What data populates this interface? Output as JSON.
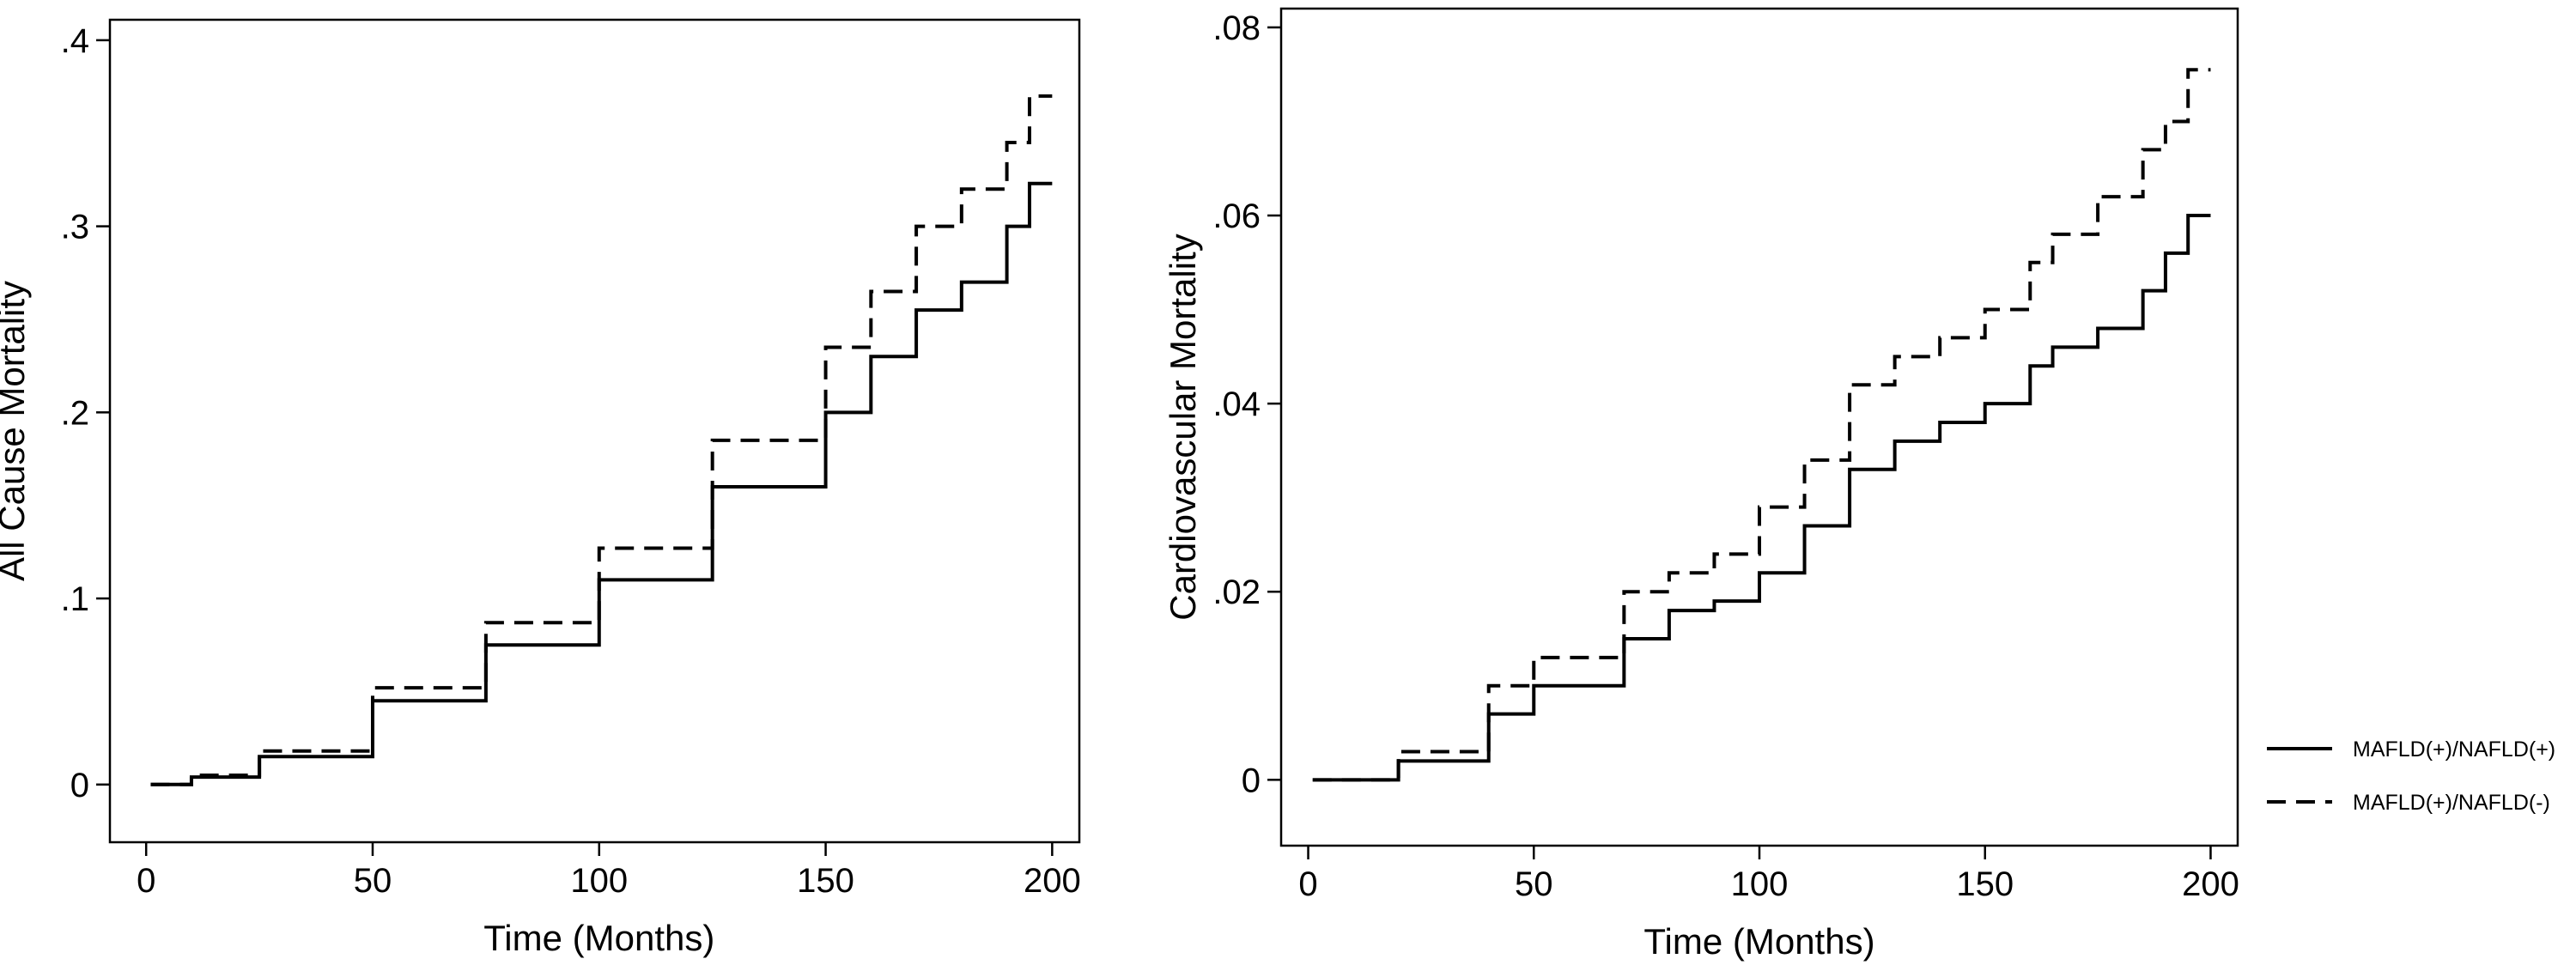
{
  "chart_data": [
    {
      "type": "line",
      "line_style": "step",
      "x_label": "Time (Months)",
      "y_label": "All Cause Mortality",
      "xlim": [
        -8,
        206
      ],
      "xticks": [
        0,
        50,
        100,
        150,
        200
      ],
      "ylim": [
        -0.031,
        0.411
      ],
      "yticks": [
        0,
        {
          "value": 0.1,
          "label": ".1"
        },
        {
          "value": 0.2,
          "label": ".2"
        },
        {
          "value": 0.3,
          "label": ".3"
        },
        {
          "value": 0.4,
          "label": ".4"
        }
      ],
      "series": [
        {
          "color": "#000000",
          "dash": "solid",
          "x": [
            1,
            10,
            25,
            50,
            75,
            100,
            125,
            150,
            160,
            170,
            180,
            190,
            195,
            200
          ],
          "values": [
            0,
            0.004,
            0.015,
            0.045,
            0.075,
            0.11,
            0.16,
            0.2,
            0.23,
            0.255,
            0.27,
            0.3,
            0.323,
            0.323
          ]
        },
        {
          "color": "#000000",
          "dash": "dashed",
          "x": [
            1,
            10,
            25,
            50,
            75,
            100,
            125,
            150,
            160,
            170,
            180,
            190,
            195,
            200
          ],
          "values": [
            0,
            0.005,
            0.018,
            0.052,
            0.087,
            0.127,
            0.185,
            0.235,
            0.265,
            0.3,
            0.32,
            0.345,
            0.37,
            0.37
          ]
        }
      ]
    },
    {
      "type": "line",
      "line_style": "step",
      "x_label": "Time (Months)",
      "y_label": "Cardiovascular Mortality",
      "xlim": [
        -6,
        206
      ],
      "xticks": [
        0,
        50,
        100,
        150,
        200
      ],
      "ylim": [
        -0.007,
        0.082
      ],
      "yticks": [
        0,
        {
          "value": 0.02,
          "label": ".02"
        },
        {
          "value": 0.04,
          "label": ".04"
        },
        {
          "value": 0.06,
          "label": ".06"
        },
        {
          "value": 0.08,
          "label": ".08"
        }
      ],
      "legend": "right",
      "series": [
        {
          "name": "MAFLD(+)/NAFLD(+)",
          "color": "#000000",
          "dash": "solid",
          "x": [
            1,
            20,
            40,
            50,
            70,
            80,
            90,
            100,
            110,
            120,
            130,
            140,
            150,
            160,
            165,
            175,
            185,
            190,
            195,
            200
          ],
          "values": [
            0,
            0.002,
            0.007,
            0.01,
            0.015,
            0.018,
            0.019,
            0.022,
            0.027,
            0.033,
            0.036,
            0.038,
            0.04,
            0.044,
            0.046,
            0.048,
            0.052,
            0.056,
            0.06,
            0.06
          ]
        },
        {
          "name": "MAFLD(+)/NAFLD(-)",
          "color": "#000000",
          "dash": "dashed",
          "x": [
            1,
            20,
            40,
            50,
            70,
            80,
            90,
            100,
            110,
            120,
            130,
            140,
            150,
            160,
            165,
            175,
            185,
            190,
            195,
            200
          ],
          "values": [
            0,
            0.003,
            0.01,
            0.013,
            0.02,
            0.022,
            0.024,
            0.029,
            0.034,
            0.042,
            0.045,
            0.047,
            0.05,
            0.055,
            0.058,
            0.062,
            0.067,
            0.07,
            0.0755,
            0.0755
          ]
        }
      ]
    }
  ]
}
